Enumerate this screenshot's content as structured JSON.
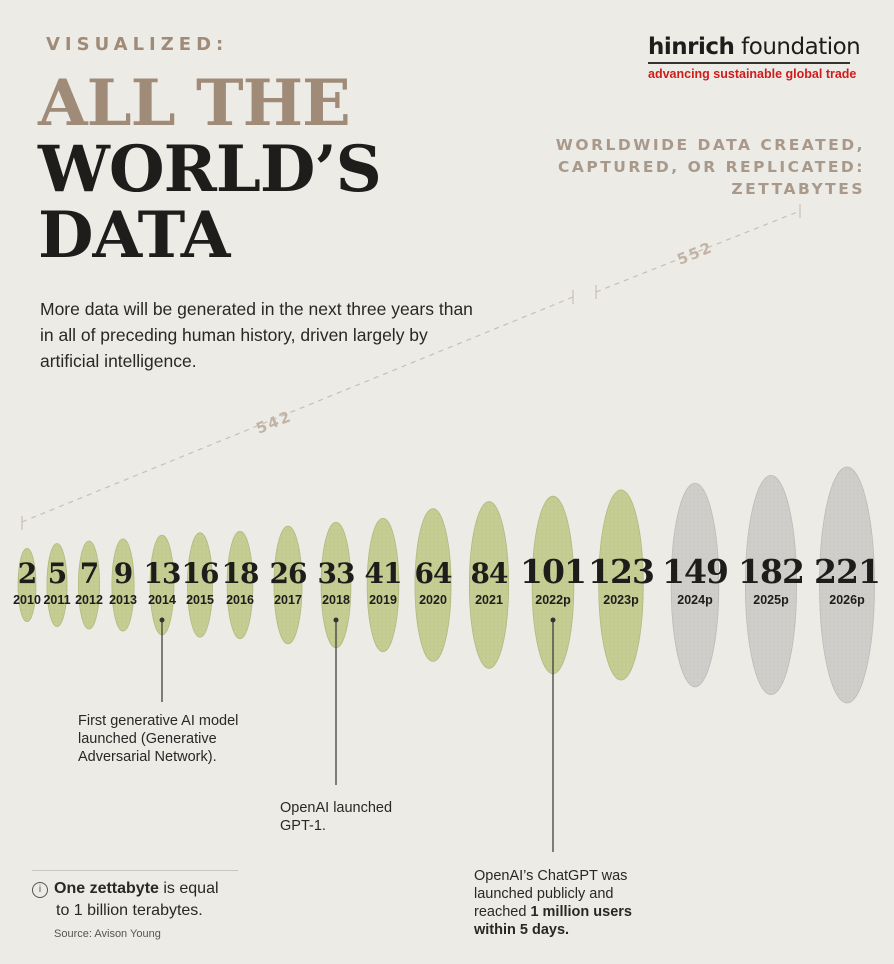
{
  "header": {
    "kicker": "VISUALIZED:",
    "title_line1": "ALL THE",
    "title_line2": "WORLD’S",
    "title_line3": "DATA",
    "intro": "More data will be generated in the next three years than in all of preceding human history, driven largely by artificial intelligence."
  },
  "brand": {
    "name_bold": "hinrich",
    "name_rest": " foundation",
    "tagline": "advancing sustainable global trade"
  },
  "chart_data": {
    "type": "bar",
    "title": "WORLDWIDE DATA CREATED, CAPTURED, OR REPLICATED: ZETTABYTES",
    "categories": [
      "2010",
      "2011",
      "2012",
      "2013",
      "2014",
      "2015",
      "2016",
      "2017",
      "2018",
      "2019",
      "2020",
      "2021",
      "2022p",
      "2023p",
      "2024p",
      "2025p",
      "2026p"
    ],
    "values": [
      2,
      5,
      7,
      9,
      13,
      16,
      18,
      26,
      33,
      41,
      64,
      84,
      101,
      123,
      149,
      182,
      221
    ],
    "projected_from": "2024p",
    "colors": {
      "actual": "#c6cd93",
      "projected": "#cfcecb"
    },
    "brackets": [
      {
        "label": "542",
        "from": "2010",
        "to": "2023p"
      },
      {
        "label": "552",
        "from": "2024p",
        "to": "2026p"
      }
    ],
    "annotations": [
      {
        "year": "2014",
        "text": "First generative AI model launched (Generative Adversarial Network)."
      },
      {
        "year": "2018",
        "text": "OpenAI launched GPT-1."
      },
      {
        "year": "2022p",
        "text_pre": "OpenAI’s ChatGPT was launched publicly and reached ",
        "text_bold": "1 million users within 5 days."
      }
    ]
  },
  "footer": {
    "note_bold": "One zettabyte",
    "note_rest1": " is equal",
    "note_rest2": "to 1 billion terabytes.",
    "source": "Source: Avison Young"
  }
}
